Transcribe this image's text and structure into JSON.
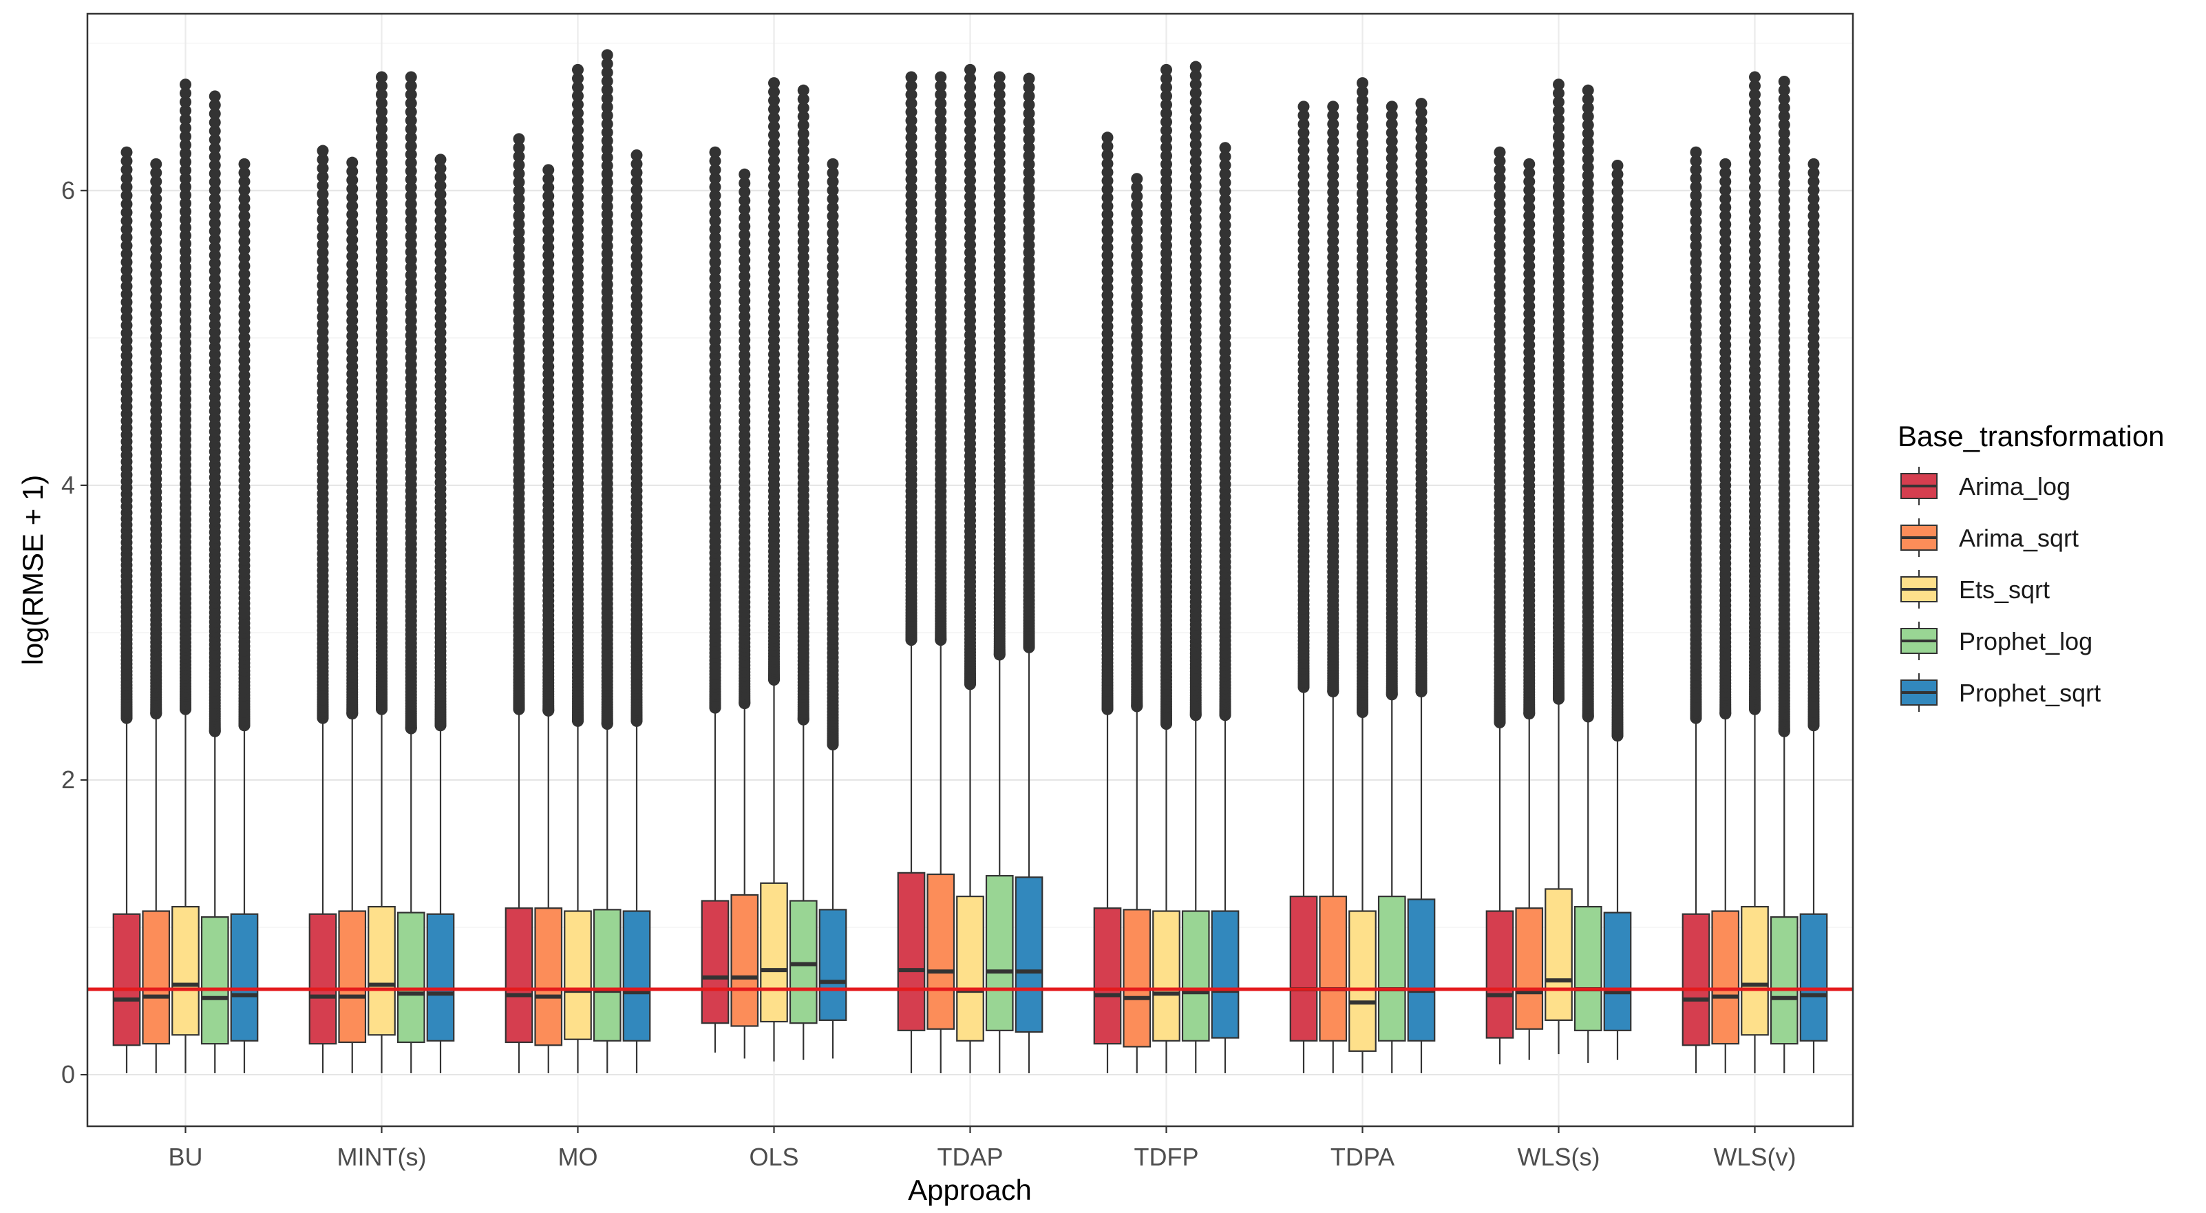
{
  "chart_data": {
    "type": "boxplot",
    "xlabel": "Approach",
    "ylabel": "log(RMSE + 1)",
    "ylim": [
      -0.35,
      7.2
    ],
    "yticks": [
      0,
      2,
      4,
      6
    ],
    "grid": true,
    "categories": [
      "BU",
      "MINT(s)",
      "MO",
      "OLS",
      "TDAP",
      "TDFP",
      "TDPA",
      "WLS(s)",
      "WLS(v)"
    ],
    "reference_line": {
      "y": 0.58,
      "color": "#e41a1c"
    },
    "legend": {
      "title": "Base_transformation",
      "position": "right"
    },
    "series": [
      {
        "name": "Arima_log",
        "color": "#d53e4f",
        "boxes": [
          {
            "q1": 0.2,
            "median": 0.51,
            "q3": 1.09,
            "low": 0.01,
            "high": 2.42,
            "max": 6.26
          },
          {
            "q1": 0.21,
            "median": 0.53,
            "q3": 1.09,
            "low": 0.01,
            "high": 2.42,
            "max": 6.27
          },
          {
            "q1": 0.22,
            "median": 0.54,
            "q3": 1.13,
            "low": 0.01,
            "high": 2.48,
            "max": 6.35
          },
          {
            "q1": 0.35,
            "median": 0.66,
            "q3": 1.18,
            "low": 0.15,
            "high": 2.49,
            "max": 6.26
          },
          {
            "q1": 0.3,
            "median": 0.71,
            "q3": 1.37,
            "low": 0.01,
            "high": 2.95,
            "max": 6.77
          },
          {
            "q1": 0.21,
            "median": 0.54,
            "q3": 1.13,
            "low": 0.01,
            "high": 2.48,
            "max": 6.36
          },
          {
            "q1": 0.23,
            "median": 0.58,
            "q3": 1.21,
            "low": 0.01,
            "high": 2.63,
            "max": 6.57
          },
          {
            "q1": 0.25,
            "median": 0.54,
            "q3": 1.11,
            "low": 0.07,
            "high": 2.39,
            "max": 6.26
          },
          {
            "q1": 0.2,
            "median": 0.51,
            "q3": 1.09,
            "low": 0.01,
            "high": 2.42,
            "max": 6.26
          }
        ]
      },
      {
        "name": "Arima_sqrt",
        "color": "#fc8d59",
        "boxes": [
          {
            "q1": 0.21,
            "median": 0.53,
            "q3": 1.11,
            "low": 0.01,
            "high": 2.45,
            "max": 6.18
          },
          {
            "q1": 0.22,
            "median": 0.53,
            "q3": 1.11,
            "low": 0.01,
            "high": 2.45,
            "max": 6.19
          },
          {
            "q1": 0.2,
            "median": 0.53,
            "q3": 1.13,
            "low": 0.01,
            "high": 2.47,
            "max": 6.14
          },
          {
            "q1": 0.33,
            "median": 0.66,
            "q3": 1.22,
            "low": 0.11,
            "high": 2.52,
            "max": 6.11
          },
          {
            "q1": 0.31,
            "median": 0.7,
            "q3": 1.36,
            "low": 0.01,
            "high": 2.95,
            "max": 6.77
          },
          {
            "q1": 0.19,
            "median": 0.52,
            "q3": 1.12,
            "low": 0.01,
            "high": 2.5,
            "max": 6.08
          },
          {
            "q1": 0.23,
            "median": 0.58,
            "q3": 1.21,
            "low": 0.01,
            "high": 2.6,
            "max": 6.57
          },
          {
            "q1": 0.31,
            "median": 0.56,
            "q3": 1.13,
            "low": 0.1,
            "high": 2.45,
            "max": 6.18
          },
          {
            "q1": 0.21,
            "median": 0.53,
            "q3": 1.11,
            "low": 0.01,
            "high": 2.45,
            "max": 6.18
          }
        ]
      },
      {
        "name": "Ets_sqrt",
        "color": "#fee08b",
        "boxes": [
          {
            "q1": 0.27,
            "median": 0.61,
            "q3": 1.14,
            "low": 0.01,
            "high": 2.48,
            "max": 6.72
          },
          {
            "q1": 0.27,
            "median": 0.61,
            "q3": 1.14,
            "low": 0.01,
            "high": 2.48,
            "max": 6.77
          },
          {
            "q1": 0.24,
            "median": 0.57,
            "q3": 1.11,
            "low": 0.01,
            "high": 2.4,
            "max": 6.82
          },
          {
            "q1": 0.36,
            "median": 0.71,
            "q3": 1.3,
            "low": 0.09,
            "high": 2.68,
            "max": 6.73
          },
          {
            "q1": 0.23,
            "median": 0.57,
            "q3": 1.21,
            "low": 0.01,
            "high": 2.65,
            "max": 6.82
          },
          {
            "q1": 0.23,
            "median": 0.55,
            "q3": 1.11,
            "low": 0.01,
            "high": 2.38,
            "max": 6.82
          },
          {
            "q1": 0.16,
            "median": 0.49,
            "q3": 1.11,
            "low": 0.01,
            "high": 2.46,
            "max": 6.73
          },
          {
            "q1": 0.37,
            "median": 0.64,
            "q3": 1.26,
            "low": 0.14,
            "high": 2.55,
            "max": 6.72
          },
          {
            "q1": 0.27,
            "median": 0.61,
            "q3": 1.14,
            "low": 0.01,
            "high": 2.48,
            "max": 6.77
          }
        ]
      },
      {
        "name": "Prophet_log",
        "color": "#99d594",
        "boxes": [
          {
            "q1": 0.21,
            "median": 0.52,
            "q3": 1.07,
            "low": 0.01,
            "high": 2.33,
            "max": 6.64
          },
          {
            "q1": 0.22,
            "median": 0.55,
            "q3": 1.1,
            "low": 0.01,
            "high": 2.35,
            "max": 6.77
          },
          {
            "q1": 0.23,
            "median": 0.57,
            "q3": 1.12,
            "low": 0.01,
            "high": 2.38,
            "max": 6.92
          },
          {
            "q1": 0.35,
            "median": 0.75,
            "q3": 1.18,
            "low": 0.1,
            "high": 2.41,
            "max": 6.68
          },
          {
            "q1": 0.3,
            "median": 0.7,
            "q3": 1.35,
            "low": 0.01,
            "high": 2.85,
            "max": 6.77
          },
          {
            "q1": 0.23,
            "median": 0.56,
            "q3": 1.11,
            "low": 0.01,
            "high": 2.44,
            "max": 6.84
          },
          {
            "q1": 0.23,
            "median": 0.58,
            "q3": 1.21,
            "low": 0.01,
            "high": 2.58,
            "max": 6.57
          },
          {
            "q1": 0.3,
            "median": 0.58,
            "q3": 1.14,
            "low": 0.08,
            "high": 2.43,
            "max": 6.68
          },
          {
            "q1": 0.21,
            "median": 0.52,
            "q3": 1.07,
            "low": 0.01,
            "high": 2.33,
            "max": 6.74
          }
        ]
      },
      {
        "name": "Prophet_sqrt",
        "color": "#3288bd",
        "boxes": [
          {
            "q1": 0.23,
            "median": 0.54,
            "q3": 1.09,
            "low": 0.01,
            "high": 2.37,
            "max": 6.18
          },
          {
            "q1": 0.23,
            "median": 0.55,
            "q3": 1.09,
            "low": 0.01,
            "high": 2.37,
            "max": 6.21
          },
          {
            "q1": 0.23,
            "median": 0.56,
            "q3": 1.11,
            "low": 0.01,
            "high": 2.4,
            "max": 6.24
          },
          {
            "q1": 0.37,
            "median": 0.63,
            "q3": 1.12,
            "low": 0.11,
            "high": 2.24,
            "max": 6.18
          },
          {
            "q1": 0.29,
            "median": 0.7,
            "q3": 1.34,
            "low": 0.01,
            "high": 2.9,
            "max": 6.76
          },
          {
            "q1": 0.25,
            "median": 0.57,
            "q3": 1.11,
            "low": 0.01,
            "high": 2.44,
            "max": 6.29
          },
          {
            "q1": 0.23,
            "median": 0.57,
            "q3": 1.19,
            "low": 0.01,
            "high": 2.6,
            "max": 6.59
          },
          {
            "q1": 0.3,
            "median": 0.56,
            "q3": 1.1,
            "low": 0.1,
            "high": 2.3,
            "max": 6.17
          },
          {
            "q1": 0.23,
            "median": 0.54,
            "q3": 1.09,
            "low": 0.01,
            "high": 2.37,
            "max": 6.18
          }
        ]
      }
    ]
  }
}
